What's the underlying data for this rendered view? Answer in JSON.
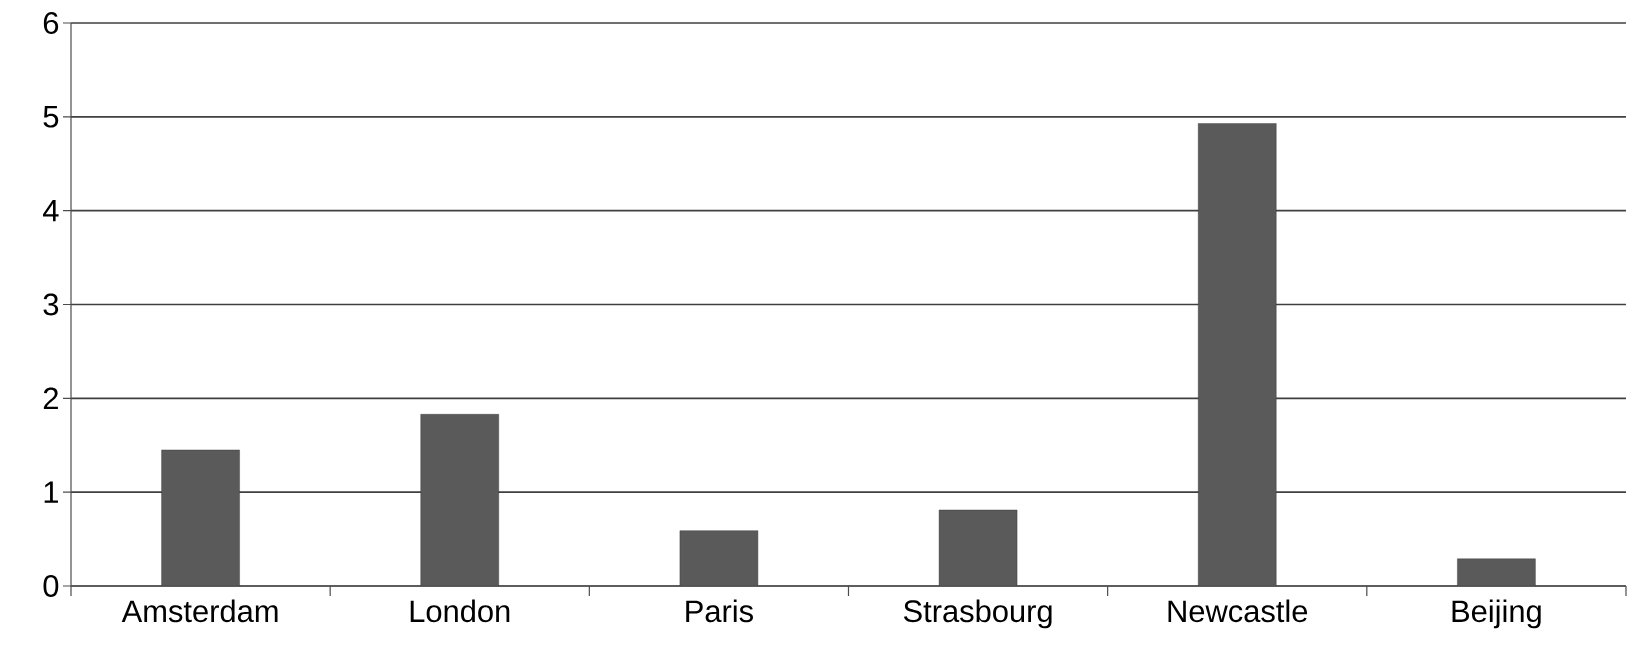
{
  "chart_data": {
    "type": "bar",
    "categories": [
      "Amsterdam",
      "London",
      "Paris",
      "Strasbourg",
      "Newcastle",
      "Beijing"
    ],
    "values": [
      1.45,
      1.83,
      0.59,
      0.81,
      4.93,
      0.29
    ],
    "color": "#5a5a5a",
    "ylim": [
      0,
      6
    ],
    "yticks": [
      0,
      1,
      2,
      3,
      4,
      5,
      6
    ],
    "grid": "y"
  }
}
